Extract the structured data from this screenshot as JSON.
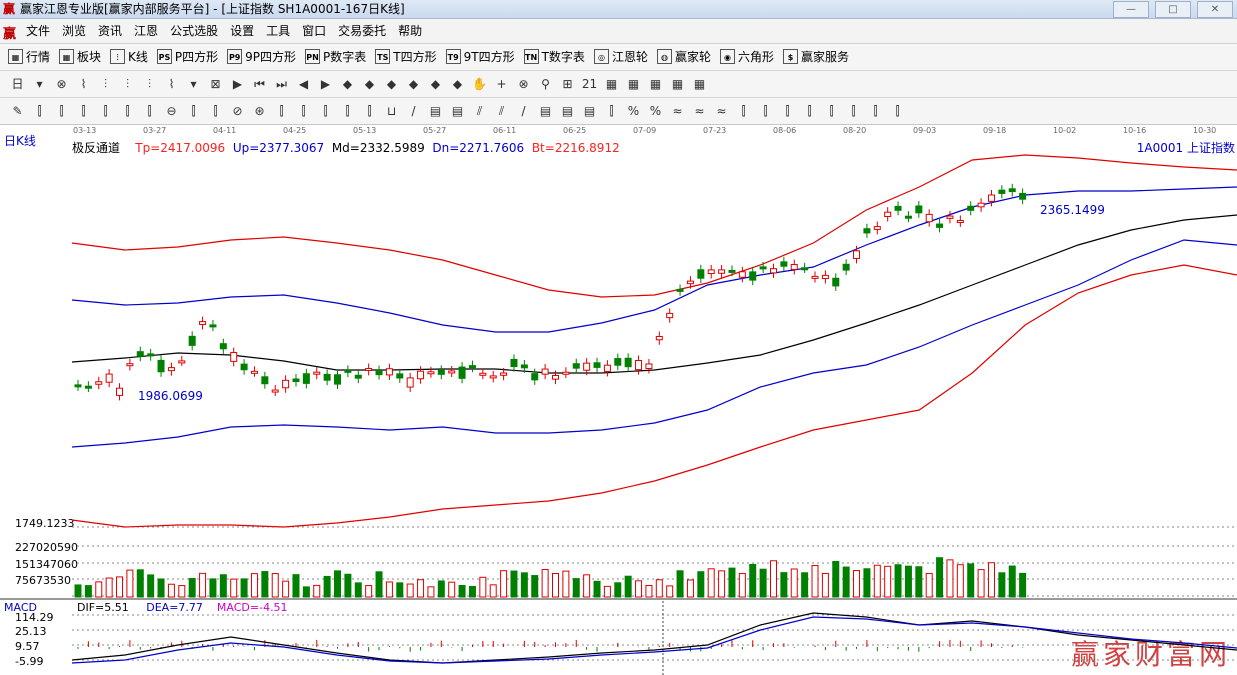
{
  "window": {
    "title": "赢家江恩专业版[赢家内部服务平台] - [上证指数  SH1A0001-167日K线]",
    "buttons": [
      "—",
      "□",
      "✕",
      "—",
      "□",
      "✕"
    ]
  },
  "menu": {
    "logo": "赢",
    "items": [
      "文件",
      "浏览",
      "资讯",
      "江恩",
      "公式选股",
      "设置",
      "工具",
      "窗口",
      "交易委托",
      "帮助"
    ]
  },
  "toolbar1": [
    {
      "icon": "grid-icon",
      "glyph": "▦",
      "label": "行情"
    },
    {
      "icon": "blocks-icon",
      "glyph": "▦",
      "label": "板块"
    },
    {
      "icon": "candles-icon",
      "glyph": "⫶",
      "label": "K线"
    },
    {
      "icon": "ps-icon",
      "glyph": "PS",
      "label": "P四方形"
    },
    {
      "icon": "p9-icon",
      "glyph": "P9",
      "label": "9P四方形"
    },
    {
      "icon": "pn-icon",
      "glyph": "PN",
      "label": "P数字表"
    },
    {
      "icon": "ts-icon",
      "glyph": "TS",
      "label": "T四方形"
    },
    {
      "icon": "t9-icon",
      "glyph": "T9",
      "label": "9T四方形"
    },
    {
      "icon": "tn-icon",
      "glyph": "TN",
      "label": "T数字表"
    },
    {
      "icon": "gann-wheel-icon",
      "glyph": "◎",
      "label": "江恩轮"
    },
    {
      "icon": "winner-wheel-icon",
      "glyph": "◍",
      "label": "赢家轮"
    },
    {
      "icon": "hexagon-icon",
      "glyph": "◉",
      "label": "六角形"
    },
    {
      "icon": "dollar-icon",
      "glyph": "$",
      "label": "赢家服务"
    }
  ],
  "toolbar2": [
    "日",
    "▾",
    "⊗",
    "⌇",
    "⫶",
    "⫶",
    "⫶",
    "⌇",
    "▾",
    "⊠",
    "▶",
    "⏮",
    "⏭",
    "◀",
    "▶",
    "◆",
    "◆",
    "◆",
    "◆",
    "◆",
    "◆",
    "✋",
    "+",
    "⊗",
    "⚲",
    "⊞",
    "21",
    "▦",
    "▦",
    "▦",
    "▦",
    "▦"
  ],
  "toolbar3": [
    "✎",
    "⫿",
    "⫿",
    "⫿",
    "⫿",
    "⫿",
    "⫿",
    "⊖",
    "⫿",
    "⫿",
    "⊘",
    "⊛",
    "⫿",
    "⫿",
    "⫿",
    "⫿",
    "⫿",
    "⊔",
    "/",
    "▤",
    "▤",
    "⫽",
    "⫽",
    "/",
    "▤",
    "▤",
    "▤",
    "⫿",
    "%",
    "%",
    "≈",
    "≈",
    "≈",
    "⫿",
    "⫿",
    "⫿",
    "⫿",
    "⫿",
    "⫿",
    "⫿",
    "⫿"
  ],
  "chart": {
    "period_label": "日K线",
    "indicator_name": "极反通道",
    "tp": "Tp=2417.0096",
    "up": "Up=2377.3067",
    "md": "Md=2332.5989",
    "dn": "Dn=2271.7606",
    "bt": "Bt=2216.8912",
    "code": "1A0001  上证指数",
    "low_label": "1986.0699",
    "high_label": "2365.1499",
    "bottom_value": "1749.1233",
    "volume_axis": [
      "227020590",
      "151347060",
      "75673530"
    ],
    "macd_axis": [
      "114.29",
      "25.13",
      "9.57",
      "-5.99"
    ],
    "dates": [
      "03-13",
      "03-27",
      "04-11",
      "04-25",
      "05-13",
      "05-27",
      "06-11",
      "06-25",
      "07-09",
      "07-23",
      "08-06",
      "08-20",
      "09-03",
      "09-18",
      "10-02",
      "10-16",
      "10-30"
    ],
    "macd_title": "MACD",
    "dif": "DIF=5.51",
    "dea": "DEA=7.77",
    "macd_value": "MACD=-4.51",
    "watermark": "赢家财富网",
    "colors": {
      "up": "#ff2020",
      "down": "#008000",
      "mid": "#000000",
      "band": "#0000cc"
    }
  }
}
